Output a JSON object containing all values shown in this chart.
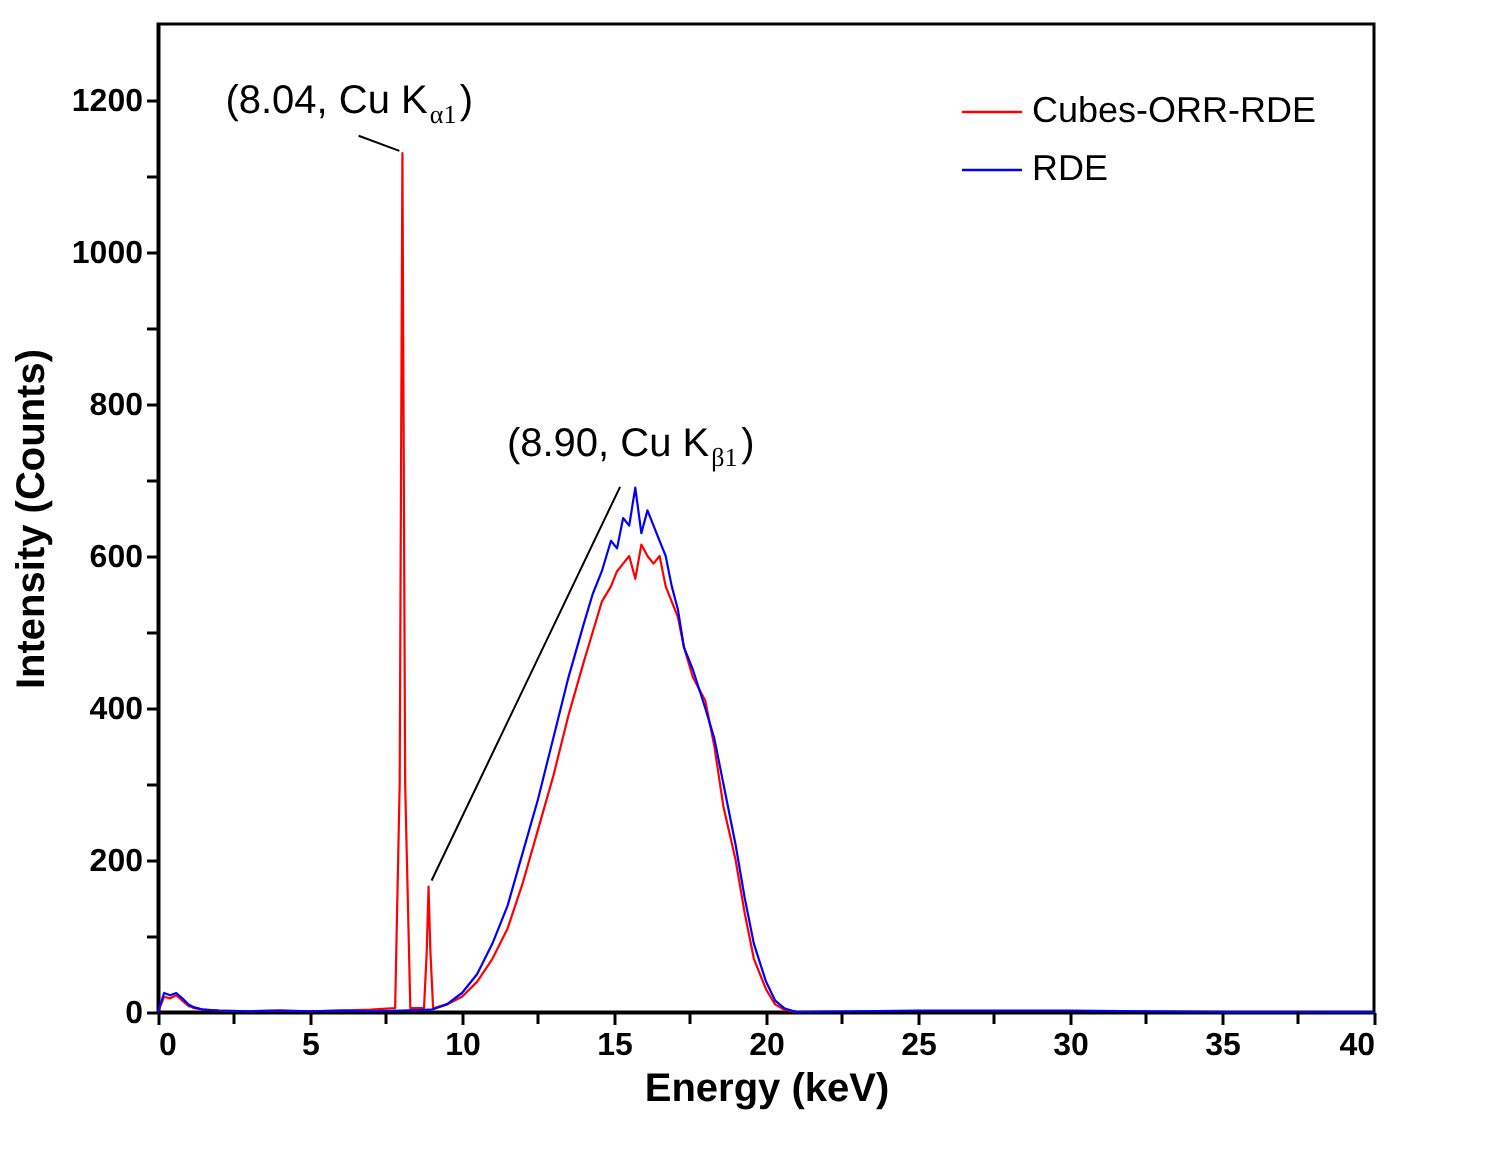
{
  "chart_data": {
    "type": "line",
    "xlabel": "Energy (keV)",
    "ylabel": "Intensity (Counts)",
    "xlim": [
      0,
      40
    ],
    "ylim": [
      0,
      1300
    ],
    "xticks": [
      0,
      {
        "value": 2.5,
        "label": null
      },
      5,
      {
        "value": 7.5,
        "label": null
      },
      10,
      {
        "value": 12.5,
        "label": null
      },
      15,
      {
        "value": 17.5,
        "label": null
      },
      20,
      {
        "value": 22.5,
        "label": null
      },
      25,
      {
        "value": 27.5,
        "label": null
      },
      30,
      {
        "value": 32.5,
        "label": null
      },
      35,
      {
        "value": 37.5,
        "label": null
      },
      40
    ],
    "yticks": [
      0,
      {
        "value": 100,
        "label": null
      },
      200,
      {
        "value": 300,
        "label": null
      },
      400,
      {
        "value": 500,
        "label": null
      },
      600,
      {
        "value": 700,
        "label": null
      },
      800,
      {
        "value": 900,
        "label": null
      },
      1000,
      {
        "value": 1100,
        "label": null
      },
      1200
    ],
    "grid": false,
    "legend": "top right",
    "line_style": "solid",
    "marker": "none",
    "series": [
      {
        "name": "Cubes-ORR-RDE",
        "color": "#ff0000",
        "x": [
          0,
          0.2,
          0.4,
          0.6,
          0.8,
          1.0,
          1.2,
          1.5,
          2,
          3,
          4,
          5,
          6,
          7,
          7.8,
          7.95,
          8.04,
          8.13,
          8.3,
          8.75,
          8.84,
          8.9,
          8.96,
          9.05,
          9.5,
          10,
          10.5,
          11,
          11.5,
          12,
          12.5,
          13,
          13.5,
          14,
          14.3,
          14.6,
          14.9,
          15.1,
          15.3,
          15.5,
          15.7,
          15.9,
          16.1,
          16.3,
          16.5,
          16.7,
          16.9,
          17.1,
          17.3,
          17.6,
          18,
          18.3,
          18.6,
          19,
          19.3,
          19.6,
          20,
          20.3,
          20.6,
          21
        ],
        "values": [
          0,
          20,
          18,
          22,
          15,
          8,
          5,
          3,
          2,
          1,
          2,
          1,
          2,
          3,
          5,
          300,
          1130,
          300,
          5,
          5,
          80,
          165,
          80,
          5,
          10,
          20,
          40,
          70,
          110,
          170,
          240,
          310,
          390,
          460,
          500,
          540,
          560,
          580,
          590,
          600,
          570,
          615,
          600,
          590,
          600,
          560,
          540,
          520,
          480,
          440,
          410,
          350,
          270,
          200,
          130,
          70,
          30,
          10,
          3,
          0
        ]
      },
      {
        "name": "RDE",
        "color": "#0000ff",
        "x": [
          0,
          0.2,
          0.4,
          0.6,
          0.8,
          1.0,
          1.2,
          1.5,
          2,
          3,
          4,
          5,
          6,
          7,
          8,
          9,
          9.5,
          10,
          10.5,
          11,
          11.5,
          12,
          12.5,
          13,
          13.5,
          14,
          14.3,
          14.6,
          14.9,
          15.1,
          15.3,
          15.5,
          15.7,
          15.9,
          16.1,
          16.3,
          16.5,
          16.7,
          16.9,
          17.1,
          17.3,
          17.6,
          18,
          18.3,
          18.6,
          19,
          19.3,
          19.6,
          20,
          20.3,
          20.6,
          21,
          25,
          30,
          35,
          40
        ],
        "values": [
          0,
          25,
          22,
          25,
          18,
          10,
          6,
          3,
          2,
          1,
          2,
          1,
          2,
          1,
          2,
          3,
          10,
          25,
          50,
          90,
          140,
          210,
          280,
          360,
          440,
          510,
          550,
          580,
          620,
          610,
          650,
          640,
          690,
          630,
          660,
          640,
          620,
          600,
          560,
          530,
          480,
          450,
          400,
          360,
          300,
          220,
          150,
          90,
          40,
          15,
          5,
          0,
          2,
          2,
          0,
          0
        ]
      }
    ],
    "annotations": [
      {
        "text": "(8.04, Cu K$_{α1}$)",
        "x": 8.04,
        "y": 1130
      },
      {
        "text": "(8.90, Cu K$_{β1}$)",
        "x": 8.9,
        "y": 165
      }
    ]
  }
}
